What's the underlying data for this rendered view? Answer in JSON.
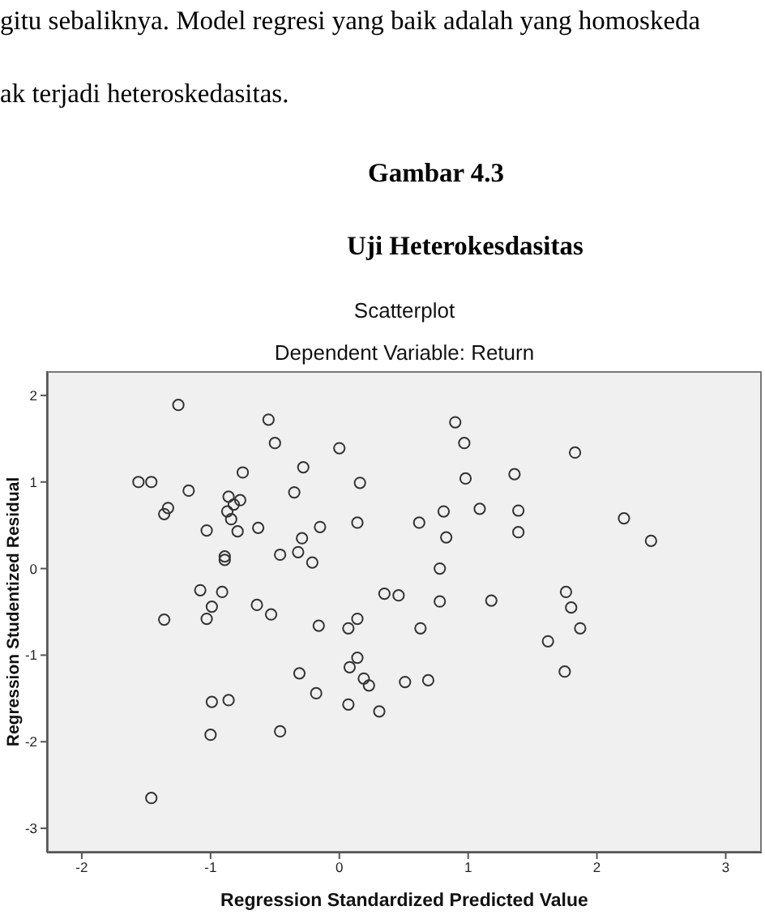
{
  "chart_data": {
    "type": "scatter",
    "title": "Scatterplot",
    "subtitle": "Dependent Variable: Return",
    "xlabel": "Regression Standardized Predicted Value",
    "ylabel": "Regression Studentized Residual",
    "annotations": [
      "gitu sebaliknya. Model regresi yang baik adalah yang homoskeda",
      "ak terjadi heteroskedasitas.",
      "Gambar 4.3",
      "Uji Heterokesdasitas"
    ],
    "x": [
      -1.25,
      -0.55,
      -0.5,
      0.0,
      -1.56,
      -1.46,
      -0.75,
      -0.28,
      0.16,
      -1.17,
      -0.35,
      -0.86,
      -0.77,
      -0.82,
      -1.33,
      -1.36,
      -0.87,
      -0.84,
      -1.03,
      -0.79,
      -0.63,
      -0.15,
      0.14,
      -0.29,
      -0.89,
      -0.89,
      -0.46,
      -0.32,
      -0.21,
      0.35,
      0.46,
      -1.08,
      -0.91,
      -0.99,
      -1.36,
      -1.03,
      -0.64,
      -0.53,
      -0.16,
      0.07,
      0.14,
      0.14,
      0.08,
      0.19,
      0.23,
      -0.31,
      -0.18,
      0.07,
      0.31,
      -0.99,
      -0.86,
      -1.0,
      -0.46,
      -1.46,
      0.9,
      0.97,
      1.83,
      0.98,
      1.36,
      0.81,
      1.09,
      1.39,
      0.62,
      0.83,
      1.39,
      2.21,
      2.42,
      0.78,
      0.78,
      1.18,
      1.76,
      1.8,
      1.87,
      1.62,
      0.63,
      1.75,
      0.51,
      0.69
    ],
    "values": [
      1.89,
      1.72,
      1.45,
      1.39,
      1.0,
      1.0,
      1.11,
      1.17,
      0.99,
      0.9,
      0.88,
      0.83,
      0.79,
      0.74,
      0.7,
      0.63,
      0.66,
      0.57,
      0.44,
      0.43,
      0.47,
      0.48,
      0.53,
      0.35,
      0.14,
      0.1,
      0.16,
      0.19,
      0.07,
      -0.29,
      -0.31,
      -0.25,
      -0.27,
      -0.44,
      -0.59,
      -0.58,
      -0.42,
      -0.53,
      -0.66,
      -0.69,
      -0.58,
      -1.03,
      -1.14,
      -1.27,
      -1.35,
      -1.21,
      -1.44,
      -1.57,
      -1.65,
      -1.54,
      -1.52,
      -1.92,
      -1.88,
      -2.65,
      1.69,
      1.45,
      1.34,
      1.04,
      1.09,
      0.66,
      0.69,
      0.67,
      0.53,
      0.36,
      0.42,
      0.58,
      0.32,
      0.0,
      -0.38,
      -0.37,
      -0.27,
      -0.45,
      -0.69,
      -0.84,
      -0.69,
      -1.19,
      -1.31,
      -1.29
    ],
    "color": "#333333",
    "marker": "circle",
    "xlim": [
      -2.27,
      3.28
    ],
    "ylim": [
      -3.28,
      2.28
    ],
    "xticks": [
      -2,
      -1,
      0,
      1,
      2,
      3
    ],
    "yticks": [
      -3,
      -2,
      -1,
      0,
      1,
      2
    ]
  }
}
